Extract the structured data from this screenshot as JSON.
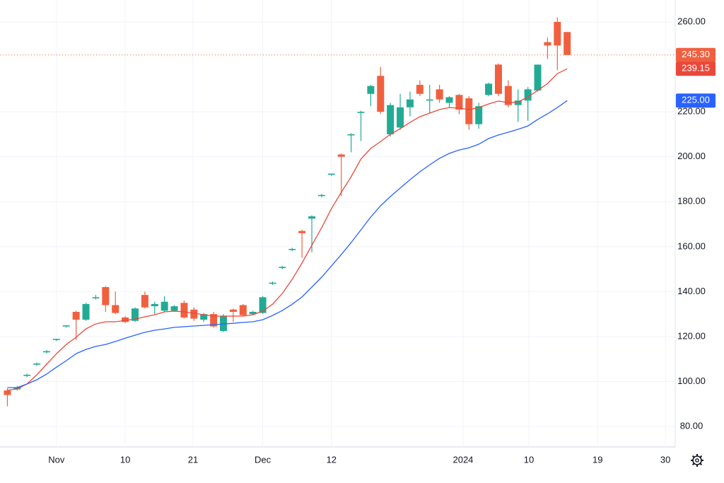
{
  "chart_data": {
    "type": "candlestick",
    "x": [
      0,
      1,
      2,
      3,
      4,
      5,
      6,
      7,
      8,
      9,
      10,
      11,
      12,
      13,
      14,
      15,
      16,
      17,
      18,
      19,
      20,
      21,
      22,
      23,
      24,
      25,
      26,
      27,
      28,
      29,
      30,
      31,
      32,
      33,
      34,
      35,
      36,
      37,
      38,
      39,
      40,
      41,
      42,
      43,
      44,
      45,
      46,
      47,
      48,
      49,
      50,
      51,
      52,
      53,
      54,
      55,
      56,
      57
    ],
    "open": [
      96,
      96.5,
      102.5,
      107.5,
      113,
      118.5,
      124.5,
      131,
      127.5,
      137,
      142,
      134,
      128.5,
      127,
      138.5,
      133.5,
      131.5,
      131.5,
      135,
      132,
      127.5,
      130,
      122.5,
      132,
      134,
      130,
      130.5,
      143.5,
      150.5,
      158.5,
      167,
      172.5,
      182.5,
      192,
      201,
      209.5,
      219.5,
      228,
      236,
      210,
      213,
      222,
      232,
      225,
      230,
      224,
      227.5,
      226,
      214.5,
      227.5,
      241,
      231.5,
      223,
      225,
      229.5,
      251,
      260,
      255.5
    ],
    "high": [
      97,
      98,
      103.5,
      108.5,
      114,
      119,
      125,
      131.5,
      135,
      138.5,
      142.5,
      140,
      129,
      133,
      140,
      135.5,
      138,
      134,
      136,
      133,
      130.5,
      131,
      130,
      132.5,
      134.5,
      131.5,
      138,
      144.5,
      151.5,
      159.5,
      167.5,
      174,
      183.5,
      192.5,
      201.5,
      210.5,
      220.5,
      232,
      240,
      224,
      228,
      229,
      234,
      232,
      232,
      227,
      228,
      227,
      224,
      233,
      241.5,
      234,
      230,
      231,
      241,
      253,
      262,
      255.5
    ],
    "low": [
      89,
      96,
      102,
      107,
      112.5,
      118,
      124,
      118.5,
      127,
      136.5,
      131,
      130,
      126,
      126.5,
      132.5,
      130,
      131,
      131,
      128,
      127,
      126.5,
      124,
      122,
      126.5,
      129,
      129.5,
      130,
      143,
      150,
      158,
      155,
      157.5,
      182,
      191.5,
      182.5,
      202,
      207,
      222.5,
      219,
      209,
      212,
      218,
      227,
      219.5,
      224,
      222,
      219,
      212,
      212.5,
      227,
      227,
      222,
      215.5,
      216,
      229,
      243.5,
      238.5,
      245.3
    ],
    "close": [
      94,
      97.5,
      103,
      108,
      113.5,
      119,
      125,
      127.5,
      134.5,
      137.5,
      134,
      130.5,
      126.5,
      132.5,
      133,
      134.5,
      135.5,
      133.5,
      128.5,
      128,
      130,
      124.5,
      129,
      131,
      129.5,
      131,
      137.5,
      144,
      151,
      159,
      166,
      173.5,
      183,
      192.5,
      200,
      210,
      220,
      231.5,
      220,
      223,
      222,
      225.5,
      228,
      225.5,
      225.5,
      226.5,
      221,
      214.5,
      222.5,
      232.5,
      228,
      223,
      225,
      230,
      241,
      249.5,
      249.5,
      245.3
    ],
    "up_color": "#22ab94",
    "down_color": "#f0603f",
    "last_price_label": "245.30",
    "series": [
      {
        "color": "#e9483b",
        "last_label": "239.15",
        "values": [
          96.1,
          96.7,
          98.9,
          103.0,
          107.7,
          112.4,
          116.5,
          119.7,
          123.4,
          125.6,
          126.6,
          126.6,
          127.2,
          127.8,
          128.8,
          129.7,
          131.0,
          131.3,
          131.0,
          130.4,
          129.7,
          129.1,
          129.1,
          129.1,
          129.1,
          129.7,
          131.3,
          134.4,
          139.2,
          145.5,
          152.7,
          160.6,
          168.4,
          176.9,
          184.2,
          191.1,
          199.0,
          203.7,
          206.8,
          210.0,
          212.5,
          215.3,
          217.8,
          219.4,
          221.0,
          221.9,
          221.6,
          221.0,
          221.9,
          223.5,
          224.8,
          224.1,
          224.4,
          226.6,
          229.5,
          232.6,
          237.0,
          239.15
        ]
      },
      {
        "color": "#2962ff",
        "last_label": "225.00",
        "values": [
          97.3,
          97.3,
          98.9,
          100.8,
          103.3,
          106.4,
          109.3,
          112.4,
          114.3,
          115.6,
          116.5,
          117.8,
          119.3,
          120.6,
          121.9,
          122.8,
          123.4,
          124.1,
          124.4,
          124.7,
          125.0,
          125.3,
          125.6,
          125.9,
          126.3,
          126.6,
          127.5,
          129.4,
          131.6,
          134.4,
          137.6,
          142.0,
          146.4,
          151.4,
          156.5,
          161.8,
          167.5,
          173.2,
          178.2,
          182.3,
          186.1,
          189.8,
          193.3,
          196.4,
          199.3,
          201.5,
          203.0,
          204.0,
          205.6,
          208.1,
          209.7,
          210.9,
          212.2,
          213.7,
          216.6,
          219.1,
          221.9,
          225.0
        ]
      }
    ],
    "xlim": [
      -0.75,
      68
    ],
    "xticks": [
      {
        "value": 5,
        "label": "Nov"
      },
      {
        "value": 12,
        "label": "10"
      },
      {
        "value": 18.9,
        "label": "21"
      },
      {
        "value": 26,
        "label": "Dec"
      },
      {
        "value": 33,
        "label": "12"
      },
      {
        "value": 46.4,
        "label": "2024"
      },
      {
        "value": 53.1,
        "label": "10"
      },
      {
        "value": 60.1,
        "label": "19"
      },
      {
        "value": 67,
        "label": "30"
      }
    ],
    "ylim": [
      70.9,
      269.75
    ],
    "yticks": [
      {
        "value": 80,
        "label": "80.00"
      },
      {
        "value": 100,
        "label": "100.00"
      },
      {
        "value": 120,
        "label": "120.00"
      },
      {
        "value": 140,
        "label": "140.00"
      },
      {
        "value": 160,
        "label": "160.00"
      },
      {
        "value": 180,
        "label": "180.00"
      },
      {
        "value": 200,
        "label": "200.00"
      },
      {
        "value": 220,
        "label": "220.00"
      },
      {
        "value": 260,
        "label": "260.00"
      }
    ],
    "grid": true
  }
}
